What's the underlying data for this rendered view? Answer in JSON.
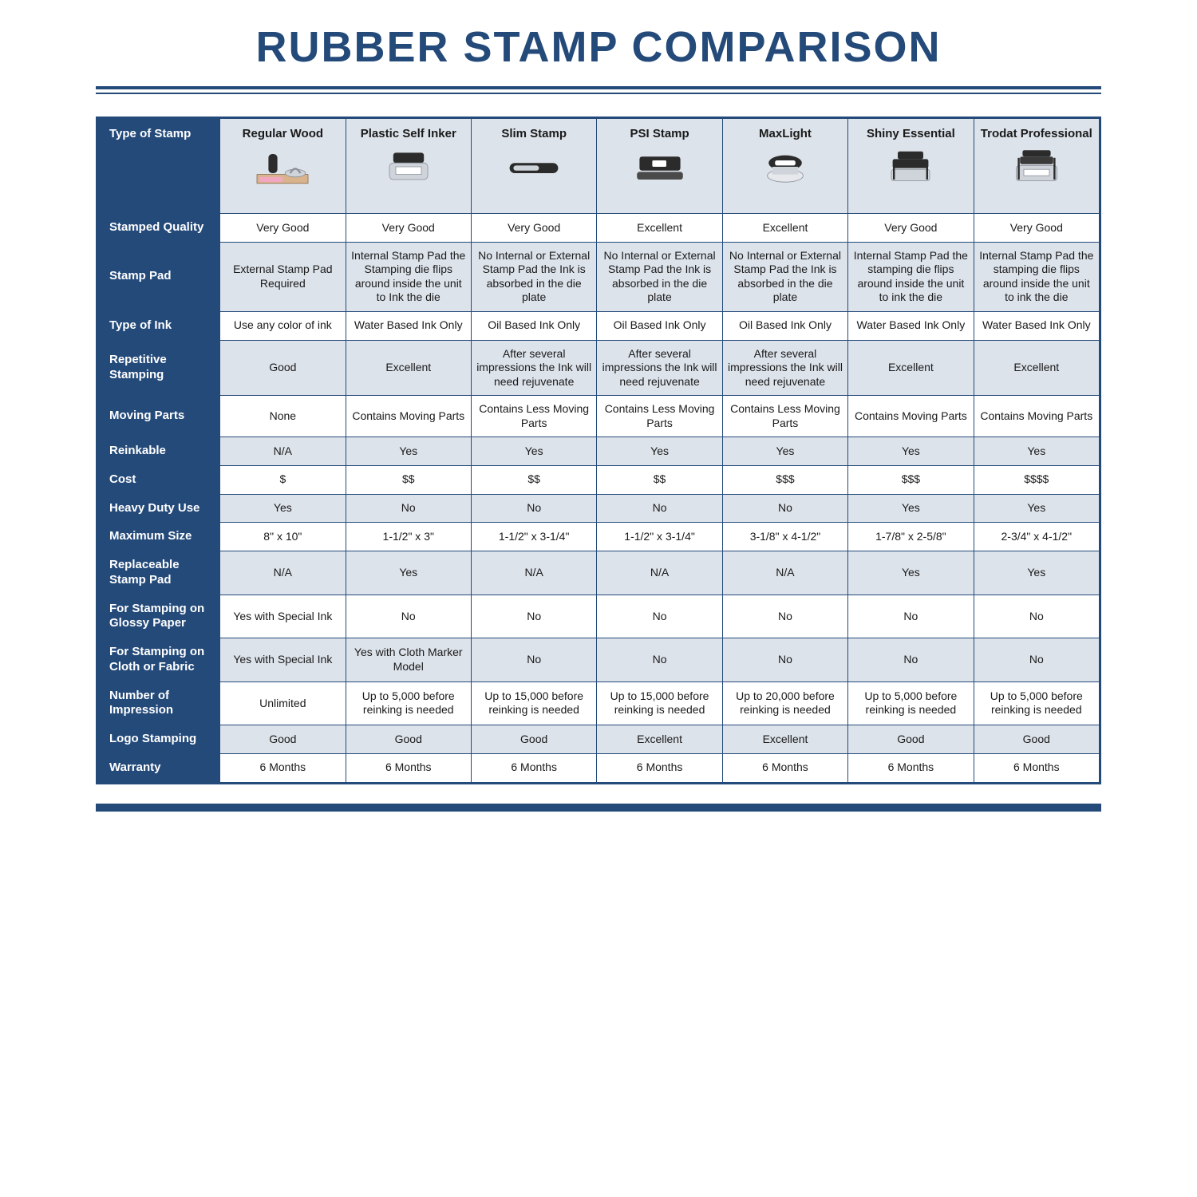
{
  "title": "RUBBER STAMP COMPARISON",
  "colors": {
    "brand": "#244a7a",
    "altRow": "#dde3eb",
    "white": "#ffffff",
    "text": "#1a1a1a"
  },
  "headerRowLabel": "Type of Stamp",
  "columns": [
    "Regular Wood",
    "Plastic Self Inker",
    "Slim Stamp",
    "PSI Stamp",
    "MaxLight",
    "Shiny Essential",
    "Trodat Professional"
  ],
  "rows": [
    {
      "label": "Stamped Quality",
      "cells": [
        "Very Good",
        "Very Good",
        "Very Good",
        "Excellent",
        "Excellent",
        "Very Good",
        "Very Good"
      ]
    },
    {
      "label": "Stamp Pad",
      "cells": [
        "External Stamp Pad Required",
        "Internal Stamp Pad the Stamping die flips around inside the unit to Ink the die",
        "No Internal or External Stamp Pad the Ink is absorbed in the die plate",
        "No Internal or External Stamp Pad the Ink is absorbed in the die plate",
        "No Internal or External Stamp Pad the Ink is absorbed in the die plate",
        "Internal Stamp Pad the stamping die flips around inside the unit to ink the die",
        "Internal Stamp Pad the stamping die flips around inside the unit to ink the die"
      ]
    },
    {
      "label": "Type of Ink",
      "cells": [
        "Use any color of ink",
        "Water Based Ink Only",
        "Oil Based Ink Only",
        "Oil Based Ink Only",
        "Oil Based Ink Only",
        "Water Based Ink Only",
        "Water Based Ink Only"
      ]
    },
    {
      "label": "Repetitive Stamping",
      "cells": [
        "Good",
        "Excellent",
        "After several impressions the Ink will need rejuvenate",
        "After several impressions the Ink will need rejuvenate",
        "After several impressions the Ink will need rejuvenate",
        "Excellent",
        "Excellent"
      ]
    },
    {
      "label": "Moving Parts",
      "cells": [
        "None",
        "Contains Moving Parts",
        "Contains Less Moving Parts",
        "Contains Less Moving Parts",
        "Contains Less Moving Parts",
        "Contains Moving Parts",
        "Contains Moving Parts"
      ]
    },
    {
      "label": "Reinkable",
      "cells": [
        "N/A",
        "Yes",
        "Yes",
        "Yes",
        "Yes",
        "Yes",
        "Yes"
      ]
    },
    {
      "label": "Cost",
      "cells": [
        "$",
        "$$",
        "$$",
        "$$",
        "$$$",
        "$$$",
        "$$$$"
      ]
    },
    {
      "label": "Heavy Duty Use",
      "cells": [
        "Yes",
        "No",
        "No",
        "No",
        "No",
        "Yes",
        "Yes"
      ]
    },
    {
      "label": "Maximum Size",
      "cells": [
        "8\" x 10\"",
        "1-1/2\" x 3\"",
        "1-1/2\" x 3-1/4\"",
        "1-1/2\" x 3-1/4\"",
        "3-1/8\" x 4-1/2\"",
        "1-7/8\" x 2-5/8\"",
        "2-3/4\" x 4-1/2\""
      ]
    },
    {
      "label": "Replaceable Stamp Pad",
      "cells": [
        "N/A",
        "Yes",
        "N/A",
        "N/A",
        "N/A",
        "Yes",
        "Yes"
      ]
    },
    {
      "label": "For Stamping on Glossy Paper",
      "cells": [
        "Yes with Special Ink",
        "No",
        "No",
        "No",
        "No",
        "No",
        "No"
      ]
    },
    {
      "label": "For Stamping on Cloth or Fabric",
      "cells": [
        "Yes with Special Ink",
        "Yes with Cloth Marker Model",
        "No",
        "No",
        "No",
        "No",
        "No"
      ]
    },
    {
      "label": "Number of Impression",
      "cells": [
        "Unlimited",
        "Up to 5,000 before reinking is needed",
        "Up to 15,000 before reinking is needed",
        "Up to 15,000 before reinking is needed",
        "Up to 20,000 before reinking is needed",
        "Up to 5,000 before reinking is needed",
        "Up to 5,000 before reinking is needed"
      ]
    },
    {
      "label": "Logo Stamping",
      "cells": [
        "Good",
        "Good",
        "Good",
        "Excellent",
        "Excellent",
        "Good",
        "Good"
      ]
    },
    {
      "label": "Warranty",
      "cells": [
        "6 Months",
        "6 Months",
        "6 Months",
        "6 Months",
        "6 Months",
        "6 Months",
        "6 Months"
      ]
    }
  ],
  "icons": {
    "colors": {
      "dark": "#2b2b2b",
      "light": "#cfd4da",
      "wood": "#d9b38c",
      "ink": "#f2a7c0",
      "white": "#ffffff",
      "black": "#111111"
    }
  }
}
